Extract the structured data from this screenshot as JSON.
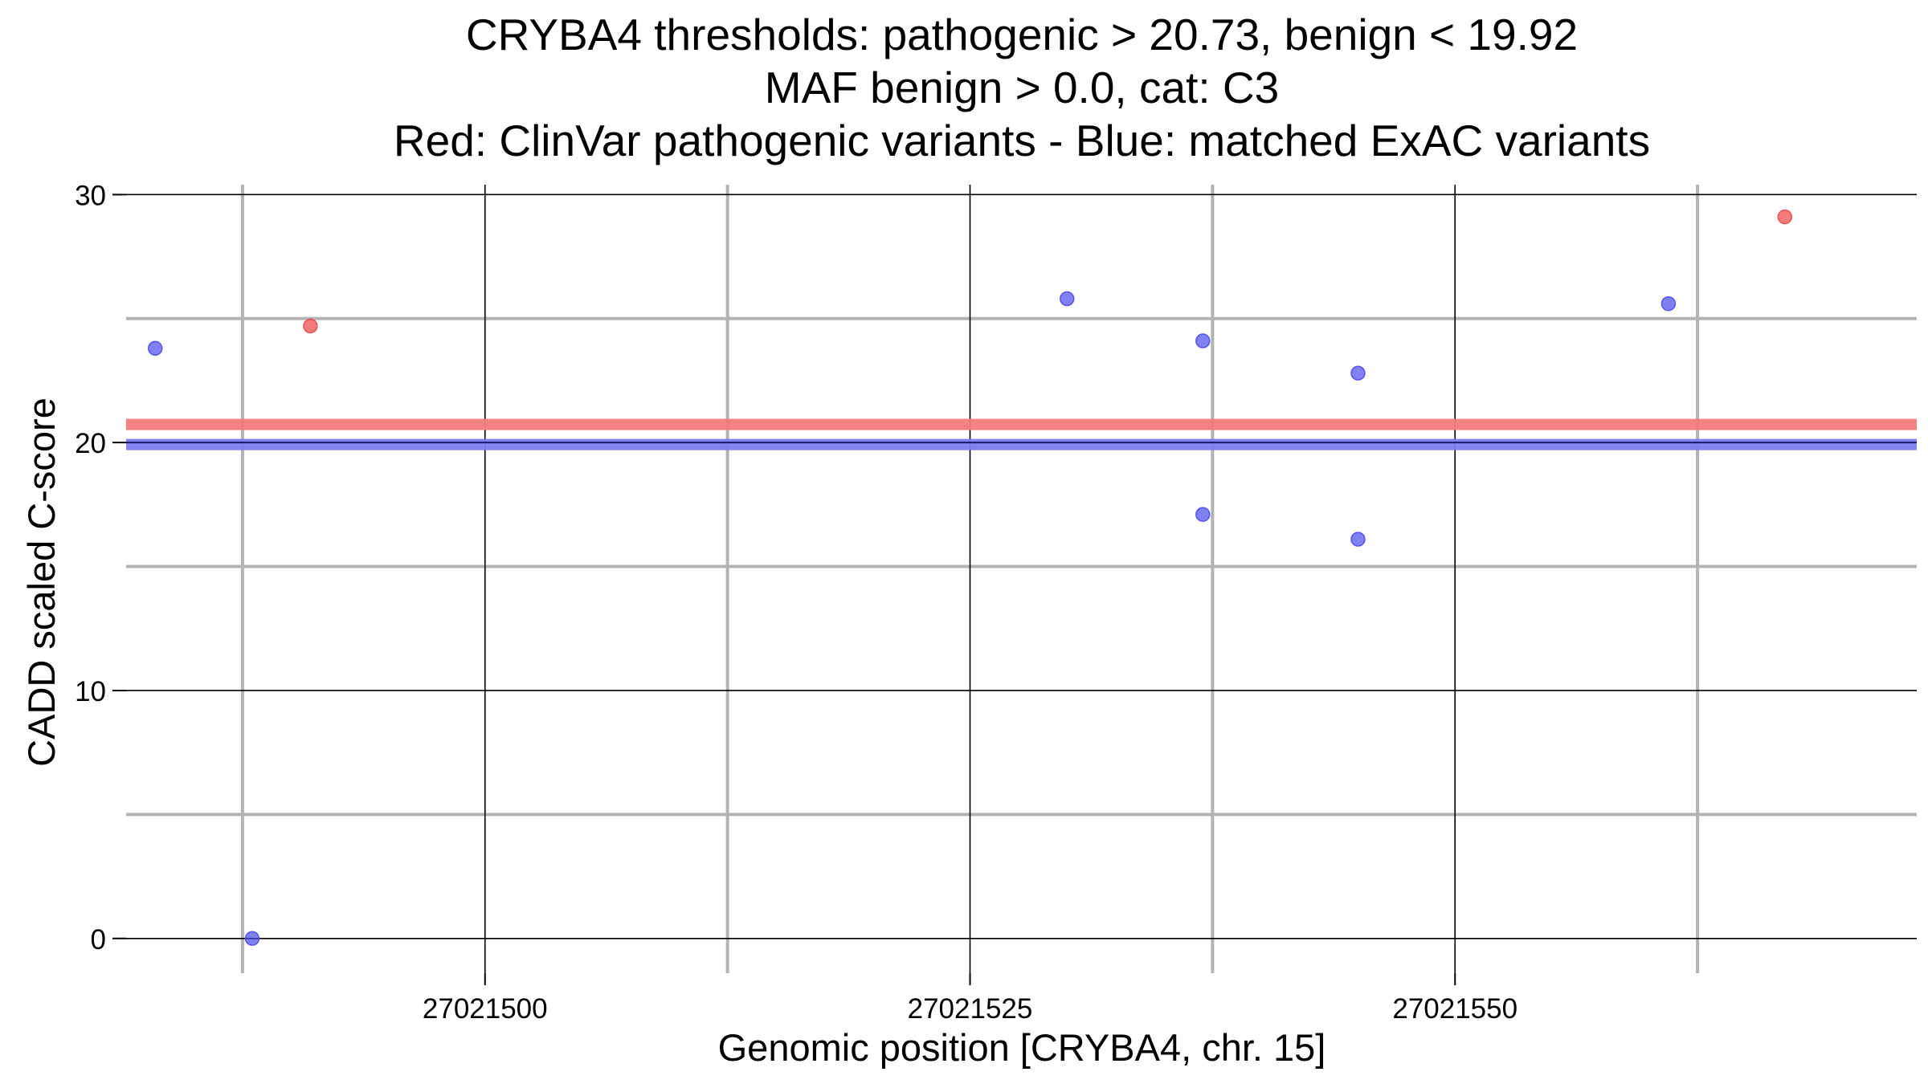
{
  "chart_data": {
    "type": "scatter",
    "title_lines": [
      "CRYBA4 thresholds: pathogenic > 20.73, benign < 19.92",
      "MAF benign > 0.0, cat: C3",
      "Red: ClinVar pathogenic variants - Blue: matched ExAC variants"
    ],
    "xlabel": "Genomic position [CRYBA4, chr. 15]",
    "ylabel": "CADD scaled C-score",
    "xlim": [
      27021481.5,
      27021573.8
    ],
    "ylim": [
      -1.4,
      30.4
    ],
    "x_ticks": [
      27021500,
      27021525,
      27021550
    ],
    "x_tick_labels": [
      "27021500",
      "27021525",
      "27021550"
    ],
    "x_minor_grid": [
      27021487.5,
      27021512.5,
      27021537.5,
      27021562.5
    ],
    "y_ticks": [
      0,
      10,
      20,
      30
    ],
    "y_tick_labels": [
      "0",
      "10",
      "20",
      "30"
    ],
    "y_minor_grid": [
      5,
      15,
      25
    ],
    "thresholds": {
      "pathogenic": 20.73,
      "benign": 19.92,
      "pathogenic_color": "#f47b7b",
      "benign_color": "#7b7bf2",
      "center_line": 20
    },
    "series": [
      {
        "color": "#ee4444",
        "points": [
          {
            "x": 27021491,
            "y": 24.7
          },
          {
            "x": 27021567,
            "y": 29.1
          }
        ]
      },
      {
        "color": "#4a4aee",
        "points": [
          {
            "x": 27021483,
            "y": 23.8
          },
          {
            "x": 27021488,
            "y": 0
          },
          {
            "x": 27021530,
            "y": 25.8
          },
          {
            "x": 27021537,
            "y": 24.1
          },
          {
            "x": 27021537,
            "y": 17.1
          },
          {
            "x": 27021545,
            "y": 22.8
          },
          {
            "x": 27021545,
            "y": 16.1
          },
          {
            "x": 27021561,
            "y": 25.6
          }
        ]
      }
    ]
  }
}
